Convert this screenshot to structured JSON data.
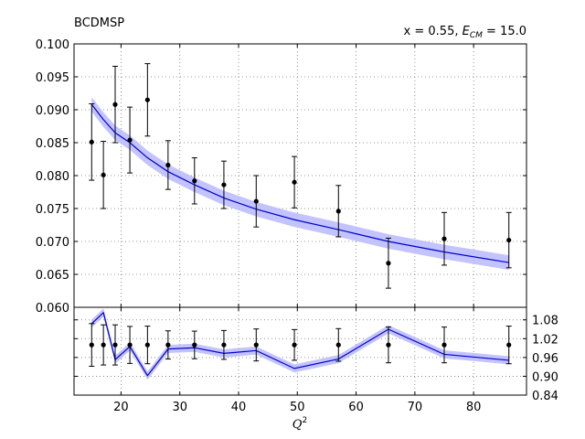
{
  "chart_data": [
    {
      "type": "scatter",
      "panel": "main",
      "title_left": "BCDMSP",
      "title_right": "x = 0.55, E_CM = 15.0",
      "title_right_text": "x = 0.55, ",
      "title_right_var": "E",
      "title_right_sub": "CM",
      "title_right_eq": " = 15.0",
      "xlabel": "Q",
      "xlabel_sup": "2",
      "xlim": [
        12,
        89
      ],
      "ylim": [
        0.06,
        0.1
      ],
      "xticks": [
        20,
        30,
        40,
        50,
        60,
        70,
        80
      ],
      "xtick_labels": [
        "20",
        "30",
        "40",
        "50",
        "60",
        "70",
        "80"
      ],
      "yticks": [
        0.06,
        0.065,
        0.07,
        0.075,
        0.08,
        0.085,
        0.09,
        0.095,
        0.1
      ],
      "ytick_labels": [
        "0.060",
        "0.065",
        "0.070",
        "0.075",
        "0.080",
        "0.085",
        "0.090",
        "0.095",
        "0.100"
      ],
      "grid": true,
      "points": [
        {
          "x": 15.0,
          "y": 0.0851,
          "err": 0.0058
        },
        {
          "x": 17.0,
          "y": 0.0801,
          "err": 0.0051
        },
        {
          "x": 19.0,
          "y": 0.0908,
          "err": 0.0058
        },
        {
          "x": 21.5,
          "y": 0.0854,
          "err": 0.005
        },
        {
          "x": 24.5,
          "y": 0.0915,
          "err": 0.0055
        },
        {
          "x": 28.0,
          "y": 0.0816,
          "err": 0.0037
        },
        {
          "x": 32.5,
          "y": 0.0792,
          "err": 0.0035
        },
        {
          "x": 37.5,
          "y": 0.0786,
          "err": 0.0036
        },
        {
          "x": 43.0,
          "y": 0.0761,
          "err": 0.0039
        },
        {
          "x": 49.5,
          "y": 0.079,
          "err": 0.0039
        },
        {
          "x": 57.0,
          "y": 0.0746,
          "err": 0.0039
        },
        {
          "x": 65.5,
          "y": 0.0667,
          "err": 0.0038
        },
        {
          "x": 75.0,
          "y": 0.0704,
          "err": 0.004
        },
        {
          "x": 86.0,
          "y": 0.0702,
          "err": 0.0042
        }
      ],
      "curve": {
        "x": [
          15.0,
          17.0,
          19.0,
          21.5,
          24.5,
          28.0,
          32.5,
          37.5,
          43.0,
          49.5,
          57.0,
          65.5,
          75.0,
          86.0
        ],
        "y": [
          0.0908,
          0.0885,
          0.0865,
          0.085,
          0.0827,
          0.0806,
          0.0786,
          0.0766,
          0.0749,
          0.0733,
          0.0718,
          0.07,
          0.0684,
          0.0668
        ],
        "band": 0.0011,
        "color": "#0000cc",
        "band_color": "#b8b8ff"
      }
    },
    {
      "type": "scatter",
      "panel": "ratio",
      "xlim": [
        12,
        89
      ],
      "ylim": [
        0.84,
        1.12
      ],
      "yticks": [
        0.84,
        0.9,
        0.96,
        1.02,
        1.08
      ],
      "ytick_labels": [
        "0.84",
        "0.90",
        "0.96",
        "1.02",
        "1.08"
      ],
      "grid": true,
      "points": [
        {
          "x": 15.0,
          "y": 1.0,
          "err": 0.068
        },
        {
          "x": 17.0,
          "y": 1.0,
          "err": 0.064
        },
        {
          "x": 19.0,
          "y": 1.0,
          "err": 0.064
        },
        {
          "x": 21.5,
          "y": 1.0,
          "err": 0.059
        },
        {
          "x": 24.5,
          "y": 1.0,
          "err": 0.06
        },
        {
          "x": 28.0,
          "y": 1.0,
          "err": 0.045
        },
        {
          "x": 32.5,
          "y": 1.0,
          "err": 0.044
        },
        {
          "x": 37.5,
          "y": 1.0,
          "err": 0.046
        },
        {
          "x": 43.0,
          "y": 1.0,
          "err": 0.051
        },
        {
          "x": 49.5,
          "y": 1.0,
          "err": 0.049
        },
        {
          "x": 57.0,
          "y": 1.0,
          "err": 0.052
        },
        {
          "x": 65.5,
          "y": 1.0,
          "err": 0.057
        },
        {
          "x": 75.0,
          "y": 1.0,
          "err": 0.057
        },
        {
          "x": 86.0,
          "y": 1.0,
          "err": 0.06
        }
      ],
      "curve": {
        "x": [
          15.0,
          17.0,
          19.0,
          21.5,
          24.5,
          28.0,
          32.5,
          37.5,
          43.0,
          49.5,
          57.0,
          65.5,
          75.0,
          86.0
        ],
        "y": [
          1.068,
          1.103,
          0.953,
          0.995,
          0.902,
          0.987,
          0.991,
          0.973,
          0.982,
          0.925,
          0.955,
          1.05,
          0.97,
          0.951
        ],
        "band": 0.013,
        "color": "#0000cc",
        "band_color": "#b8b8ff"
      }
    }
  ]
}
